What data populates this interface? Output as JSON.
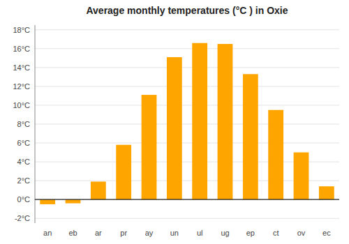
{
  "chart_data": {
    "type": "bar",
    "title": "Average monthly temperatures (°C ) in Oxie",
    "categories": [
      "an",
      "eb",
      "ar",
      "pr",
      "ay",
      "un",
      "ul",
      "ug",
      "ep",
      "ct",
      "ov",
      "ec"
    ],
    "values": [
      -0.5,
      -0.4,
      1.9,
      5.8,
      11.1,
      15.1,
      16.6,
      16.5,
      13.3,
      9.5,
      5.0,
      1.4
    ],
    "color": "#FFA500",
    "ylim": [
      -2.5,
      18.5
    ],
    "yticks": [
      {
        "value": -2,
        "label": "-2°C"
      },
      {
        "value": 0,
        "label": "0°C"
      },
      {
        "value": 2,
        "label": "2°C"
      },
      {
        "value": 4,
        "label": "4°C"
      },
      {
        "value": 6,
        "label": "6°C"
      },
      {
        "value": 8,
        "label": "8°C"
      },
      {
        "value": 10,
        "label": "10°C"
      },
      {
        "value": 12,
        "label": "12°C"
      },
      {
        "value": 14,
        "label": "14°C"
      },
      {
        "value": 16,
        "label": "16°C"
      },
      {
        "value": 18,
        "label": "18°C"
      }
    ],
    "grid": true
  }
}
